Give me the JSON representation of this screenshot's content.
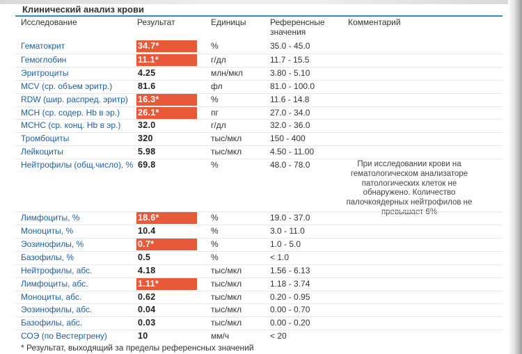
{
  "title": "Клинический анализ крови",
  "columns": {
    "test": "Исследование",
    "result": "Результат",
    "units": "Единицы",
    "reference_line1": "Референсные",
    "reference_line2": "значения",
    "comment": "Комментарий"
  },
  "rows": [
    {
      "test": "Гематокрит",
      "result": "34.7*",
      "units": "%",
      "reference": "35.0 - 45.0",
      "comment": "",
      "flagged": true
    },
    {
      "test": "Гемоглобин",
      "result": "11.1*",
      "units": "г/дл",
      "reference": "11.7 - 15.5",
      "comment": "",
      "flagged": true
    },
    {
      "test": "Эритроциты",
      "result": "4.25",
      "units": "млн/мкл",
      "reference": "3.80 - 5.10",
      "comment": "",
      "flagged": false
    },
    {
      "test": "MCV (ср. объем эритр.)",
      "result": "81.6",
      "units": "фл",
      "reference": "81.0 - 100.0",
      "comment": "",
      "flagged": false
    },
    {
      "test": "RDW (шир. распред. эритр)",
      "result": "16.3*",
      "units": "%",
      "reference": "11.6 - 14.8",
      "comment": "",
      "flagged": true
    },
    {
      "test": "MCH (ср. содер. Hb в эр.)",
      "result": "26.1*",
      "units": "пг",
      "reference": "27.0 - 34.0",
      "comment": "",
      "flagged": true
    },
    {
      "test": "MCHC (ср. конц. Hb в эр.)",
      "result": "32.0",
      "units": "г/дл",
      "reference": "32.0 - 36.0",
      "comment": "",
      "flagged": false
    },
    {
      "test": "Тромбоциты",
      "result": "320",
      "units": "тыс/мкл",
      "reference": "150 - 400",
      "comment": "",
      "flagged": false
    },
    {
      "test": "Лейкоциты",
      "result": "5.98",
      "units": "тыс/мкл",
      "reference": "4.50 - 11.00",
      "comment": "",
      "flagged": false
    },
    {
      "test": "Нейтрофилы (общ.число), %",
      "result": "69.8",
      "units": "%",
      "reference": "48.0 - 78.0",
      "comment": "При исследовании крови на гематологическом анализаторе патологических клеток не обнаружено. Количество палочкоядерных нейтрофилов не превышает 6%",
      "flagged": false
    },
    {
      "test": "Лимфоциты, %",
      "result": "18.6*",
      "units": "%",
      "reference": "19.0 - 37.0",
      "comment": "",
      "flagged": true
    },
    {
      "test": "Моноциты, %",
      "result": "10.4",
      "units": "%",
      "reference": "3.0 - 11.0",
      "comment": "",
      "flagged": false
    },
    {
      "test": "Эозинофилы, %",
      "result": "0.7*",
      "units": "%",
      "reference": "1.0 - 5.0",
      "comment": "",
      "flagged": true
    },
    {
      "test": "Базофилы, %",
      "result": "0.5",
      "units": "%",
      "reference": "< 1.0",
      "comment": "",
      "flagged": false
    },
    {
      "test": "Нейтрофилы, абс.",
      "result": "4.18",
      "units": "тыс/мкл",
      "reference": "1.56 - 6.13",
      "comment": "",
      "flagged": false
    },
    {
      "test": "Лимфоциты, абс.",
      "result": "1.11*",
      "units": "тыс/мкл",
      "reference": "1.18 - 3.74",
      "comment": "",
      "flagged": true
    },
    {
      "test": "Моноциты, абс.",
      "result": "0.62",
      "units": "тыс/мкл",
      "reference": "0.20 - 0.95",
      "comment": "",
      "flagged": false
    },
    {
      "test": "Эозинофилы, абс.",
      "result": "0.04",
      "units": "тыс/мкл",
      "reference": "0.00 - 0.70",
      "comment": "",
      "flagged": false
    },
    {
      "test": "Базофилы, абс.",
      "result": "0.03",
      "units": "тыс/мкл",
      "reference": "0.00 - 0.20",
      "comment": "",
      "flagged": false
    },
    {
      "test": "СОЭ (по Вестергрену)",
      "result": "10",
      "units": "мм/ч",
      "reference": "< 20",
      "comment": "",
      "flagged": false
    }
  ],
  "footnote": "* Результат, выходящий за пределы референсных значений",
  "colors": {
    "accent_line": "#2b90b5",
    "test_name": "#1f5ea8",
    "flag_background": "#e8593a",
    "flag_text": "#ffffff"
  }
}
